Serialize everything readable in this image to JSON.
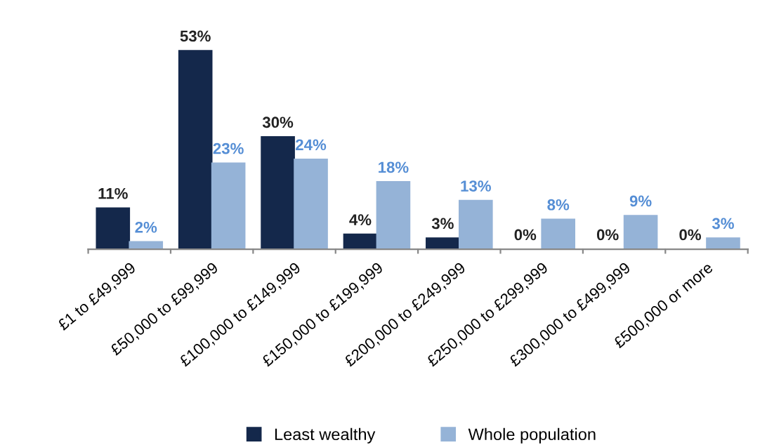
{
  "chart_data": {
    "type": "bar",
    "categories": [
      "£1 to £49,999",
      "£50,000 to £99,999",
      "£100,000 to £149,999",
      "£150,000 to £199,999",
      "£200,000 to £249,999",
      "£250,000 to £299,999",
      "£300,000 to £499,999",
      "£500,000 or more"
    ],
    "series": [
      {
        "name": "Least wealthy",
        "color": "#14284b",
        "values": [
          11,
          53,
          30,
          4,
          3,
          0,
          0,
          0
        ],
        "value_labels": [
          "11%",
          "53%",
          "30%",
          "4%",
          "3%",
          "0%",
          "0%",
          "0%"
        ]
      },
      {
        "name": "Whole population",
        "color": "#95b3d7",
        "values": [
          2,
          23,
          24,
          18,
          13,
          8,
          9,
          3
        ],
        "value_labels": [
          "2%",
          "23%",
          "24%",
          "18%",
          "13%",
          "8%",
          "9%",
          "3%"
        ]
      }
    ],
    "grid": false,
    "legend": "bottom"
  }
}
